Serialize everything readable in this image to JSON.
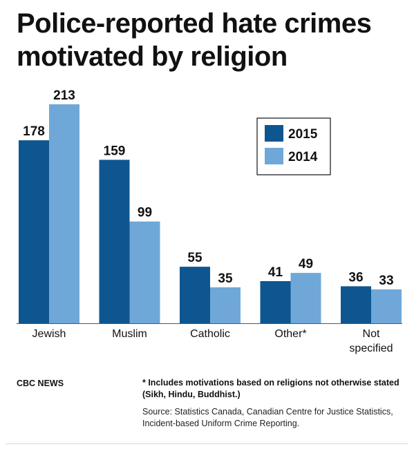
{
  "chart_data": {
    "type": "bar",
    "title": "Police-reported hate crimes motivated by religion",
    "categories": [
      "Jewish",
      "Muslim",
      "Catholic",
      "Other*",
      [
        "Not",
        "specified"
      ]
    ],
    "series": [
      {
        "name": "2015",
        "color": "#0e5690",
        "values": [
          178,
          159,
          55,
          41,
          36
        ]
      },
      {
        "name": "2014",
        "color": "#6fa8d8",
        "values": [
          213,
          99,
          35,
          49,
          33
        ]
      }
    ],
    "ylim": [
      0,
      213
    ],
    "grid": false,
    "legend": "top-right"
  },
  "footer": {
    "brand": "CBC NEWS",
    "note": "* Includes motivations based on religions not otherwise stated (Sikh, Hindu, Buddhist.)",
    "source": "Source: Statistics Canada, Canadian Centre for Justice Statistics, Incident-based Uniform Crime Reporting."
  }
}
